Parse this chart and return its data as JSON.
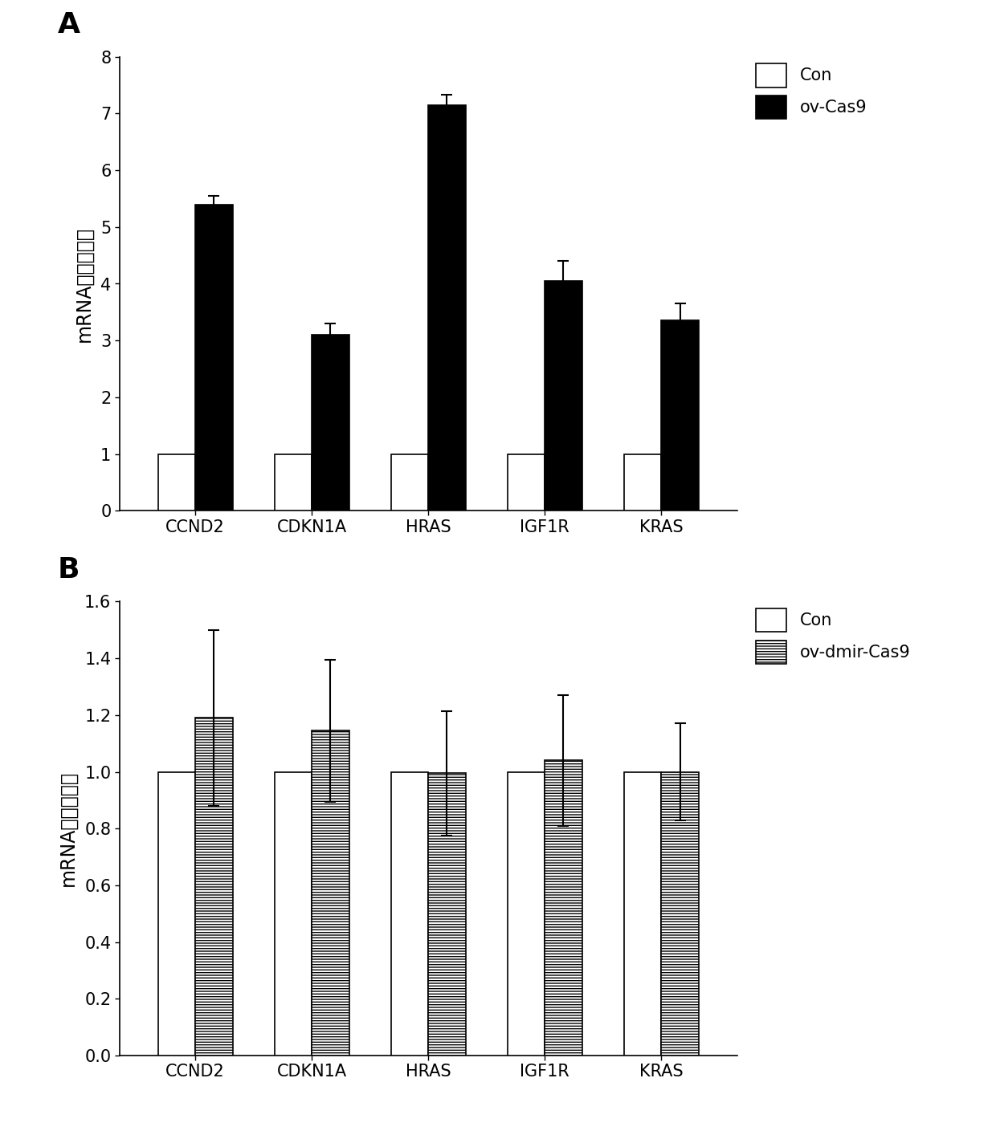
{
  "panel_A": {
    "categories": [
      "CCND2",
      "CDKN1A",
      "HRAS",
      "IGF1R",
      "KRAS"
    ],
    "con_values": [
      1.0,
      1.0,
      1.0,
      1.0,
      1.0
    ],
    "con_errors": [
      0.0,
      0.0,
      0.0,
      0.0,
      0.0
    ],
    "treatment_values": [
      5.4,
      3.1,
      7.15,
      4.05,
      3.35
    ],
    "treatment_errors": [
      0.15,
      0.2,
      0.18,
      0.35,
      0.3
    ],
    "ylim": [
      0,
      8
    ],
    "yticks": [
      0,
      1,
      2,
      3,
      4,
      5,
      6,
      7,
      8
    ],
    "ylabel": "mRNA相对表达量",
    "legend_con": "Con",
    "legend_treatment": "ov-Cas9",
    "panel_label": "A",
    "con_color": "white",
    "treatment_color": "black",
    "bar_edgecolor": "black"
  },
  "panel_B": {
    "categories": [
      "CCND2",
      "CDKN1A",
      "HRAS",
      "IGF1R",
      "KRAS"
    ],
    "con_values": [
      1.0,
      1.0,
      1.0,
      1.0,
      1.0
    ],
    "con_errors": [
      0.0,
      0.0,
      0.0,
      0.0,
      0.0
    ],
    "treatment_values": [
      1.19,
      1.145,
      0.995,
      1.04,
      1.0
    ],
    "treatment_errors": [
      0.31,
      0.25,
      0.22,
      0.23,
      0.17
    ],
    "ylim": [
      0,
      1.6
    ],
    "yticks": [
      0,
      0.2,
      0.4,
      0.6,
      0.8,
      1.0,
      1.2,
      1.4,
      1.6
    ],
    "ylabel": "mRNA相对表达量",
    "legend_con": "Con",
    "legend_treatment": "ov-dmir-Cas9",
    "panel_label": "B",
    "con_color": "white",
    "treatment_color": "hatch",
    "bar_edgecolor": "black"
  },
  "bar_width": 0.32,
  "fontsize_label": 17,
  "fontsize_tick": 15,
  "fontsize_legend": 15,
  "fontsize_panel": 26,
  "background_color": "white"
}
